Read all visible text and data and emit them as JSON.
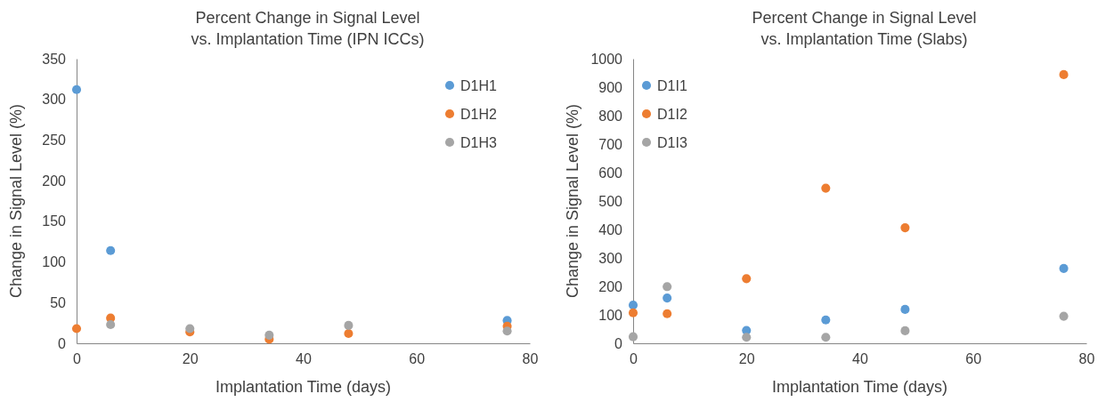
{
  "chart_data": [
    {
      "type": "scatter",
      "title": "Percent Change in Signal Level\nvs. Implantation Time (IPN ICCs)",
      "xlabel": "Implantation Time (days)",
      "ylabel": "Change in Signal Level (%)",
      "x": [
        0,
        6,
        20,
        34,
        48,
        76
      ],
      "xlim": [
        0,
        80
      ],
      "xticks": [
        0,
        20,
        40,
        60,
        80
      ],
      "ylim": [
        0,
        350
      ],
      "yticks": [
        0,
        50,
        100,
        150,
        200,
        250,
        300,
        350
      ],
      "grid": false,
      "legend": "top right",
      "marker": "circle",
      "series": [
        {
          "name": "D1H1",
          "color": "#5b9bd5",
          "values": [
            312,
            114,
            null,
            null,
            null,
            28
          ]
        },
        {
          "name": "D1H2",
          "color": "#ed7d31",
          "values": [
            18,
            31,
            14,
            5,
            12,
            21
          ]
        },
        {
          "name": "D1H3",
          "color": "#a5a5a5",
          "values": [
            null,
            23,
            18,
            10,
            22,
            15
          ]
        }
      ]
    },
    {
      "type": "scatter",
      "title": "Percent Change in Signal Level\nvs. Implantation Time (Slabs)",
      "xlabel": "Implantation Time (days)",
      "ylabel": "Change in Signal Level (%)",
      "x": [
        0,
        6,
        20,
        34,
        48,
        76
      ],
      "xlim": [
        0,
        80
      ],
      "xticks": [
        0,
        20,
        40,
        60,
        80
      ],
      "ylim": [
        0,
        1000
      ],
      "yticks": [
        0,
        100,
        200,
        300,
        400,
        500,
        600,
        700,
        800,
        900,
        1000
      ],
      "grid": false,
      "legend": "top left",
      "marker": "circle",
      "series": [
        {
          "name": "D1I1",
          "color": "#5b9bd5",
          "values": [
            134,
            159,
            45,
            82,
            119,
            263
          ]
        },
        {
          "name": "D1I2",
          "color": "#ed7d31",
          "values": [
            107,
            104,
            227,
            545,
            406,
            944
          ]
        },
        {
          "name": "D1I3",
          "color": "#a5a5a5",
          "values": [
            23,
            199,
            21,
            21,
            44,
            95
          ]
        }
      ]
    }
  ]
}
